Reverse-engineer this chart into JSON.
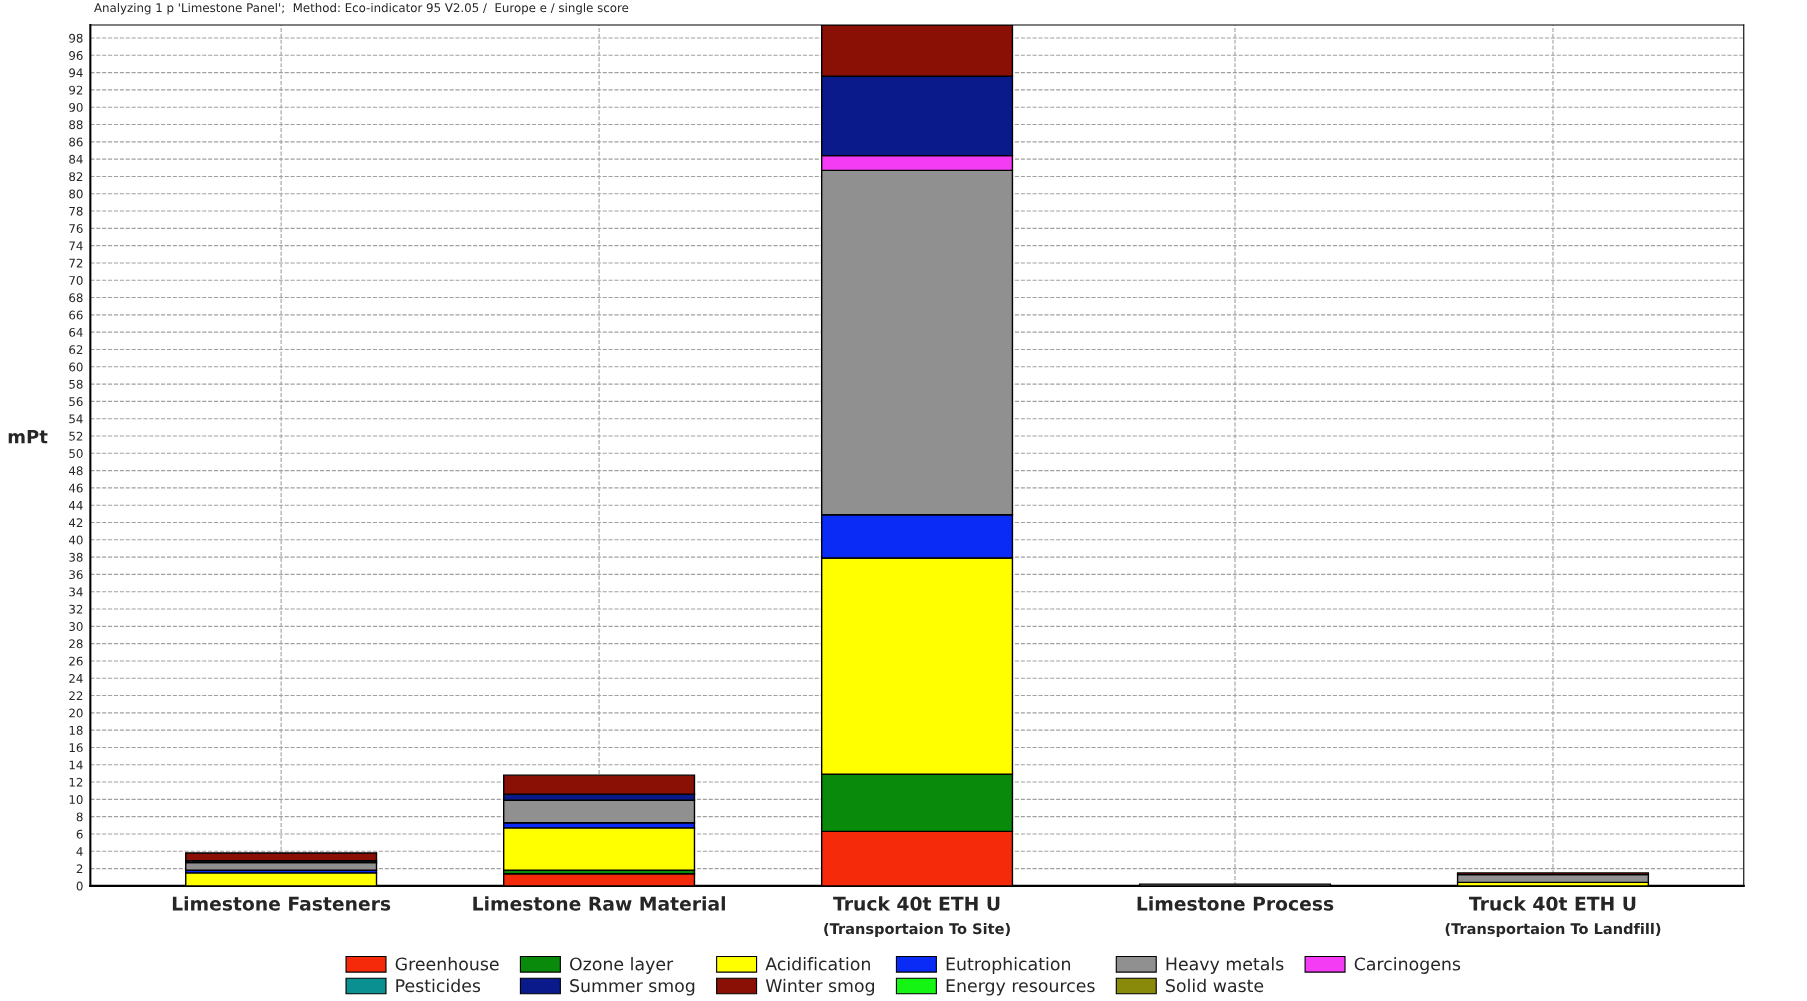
{
  "chart_data": {
    "type": "bar",
    "stacked": true,
    "title": "Analyzing 1 p 'Limestone Panel';  Method: Eco-indicator 95 V2.05 /  Europe e / single score",
    "ylabel": "mPt",
    "categories": [
      "Limestone Fasteners",
      "Limestone Raw Material",
      "Truck 40t ETH U\n(Transportaion To Site)",
      "Limestone Process",
      "Truck 40t ETH U\n(Transportaion To Landfill)"
    ],
    "series": [
      {
        "name": "Greenhouse",
        "color": "#f52a0a",
        "values": [
          null,
          1.4,
          6.3,
          0,
          null
        ]
      },
      {
        "name": "Ozone layer",
        "color": "#0a8a0a",
        "values": [
          0,
          0.4,
          6.6,
          0,
          0
        ]
      },
      {
        "name": "Acidification",
        "color": "#ffff00",
        "values": [
          1.5,
          4.9,
          25.0,
          0,
          0.4
        ]
      },
      {
        "name": "Eutrophication",
        "color": "#0a2af5",
        "values": [
          0.3,
          0.6,
          5.0,
          0,
          null
        ]
      },
      {
        "name": "Heavy metals",
        "color": "#909090",
        "values": [
          0.9,
          2.6,
          39.8,
          0.2,
          0.9
        ]
      },
      {
        "name": "Carcinogens",
        "color": "#f53cf5",
        "values": [
          0,
          0,
          1.7,
          0,
          0
        ]
      },
      {
        "name": "Pesticides",
        "color": "#0a9090",
        "values": [
          0.2,
          0,
          0,
          0,
          0
        ]
      },
      {
        "name": "Summer smog",
        "color": "#0a1a8a",
        "values": [
          0,
          0.7,
          9.2,
          0,
          0
        ]
      },
      {
        "name": "Winter smog",
        "color": "#8a1005",
        "values": [
          0.9,
          2.2,
          5.9,
          0,
          0.2
        ]
      },
      {
        "name": "Energy resources",
        "color": "#14f514",
        "values": [
          0,
          0,
          0,
          0,
          0
        ]
      },
      {
        "name": "Solid waste",
        "color": "#8a8a0a",
        "values": [
          0,
          0,
          0,
          0,
          0
        ]
      }
    ],
    "ylim": [
      0,
      99.5
    ],
    "yticks": [
      0,
      2,
      4,
      6,
      8,
      10,
      12,
      14,
      16,
      18,
      20,
      22,
      24,
      26,
      28,
      30,
      32,
      34,
      36,
      38,
      40,
      42,
      44,
      46,
      48,
      50,
      52,
      54,
      56,
      58,
      60,
      62,
      64,
      66,
      68,
      70,
      72,
      74,
      76,
      78,
      80,
      82,
      84,
      86,
      88,
      90,
      92,
      94,
      96,
      98
    ],
    "grid": true,
    "line_style": "dashed",
    "legend": "bottom"
  }
}
